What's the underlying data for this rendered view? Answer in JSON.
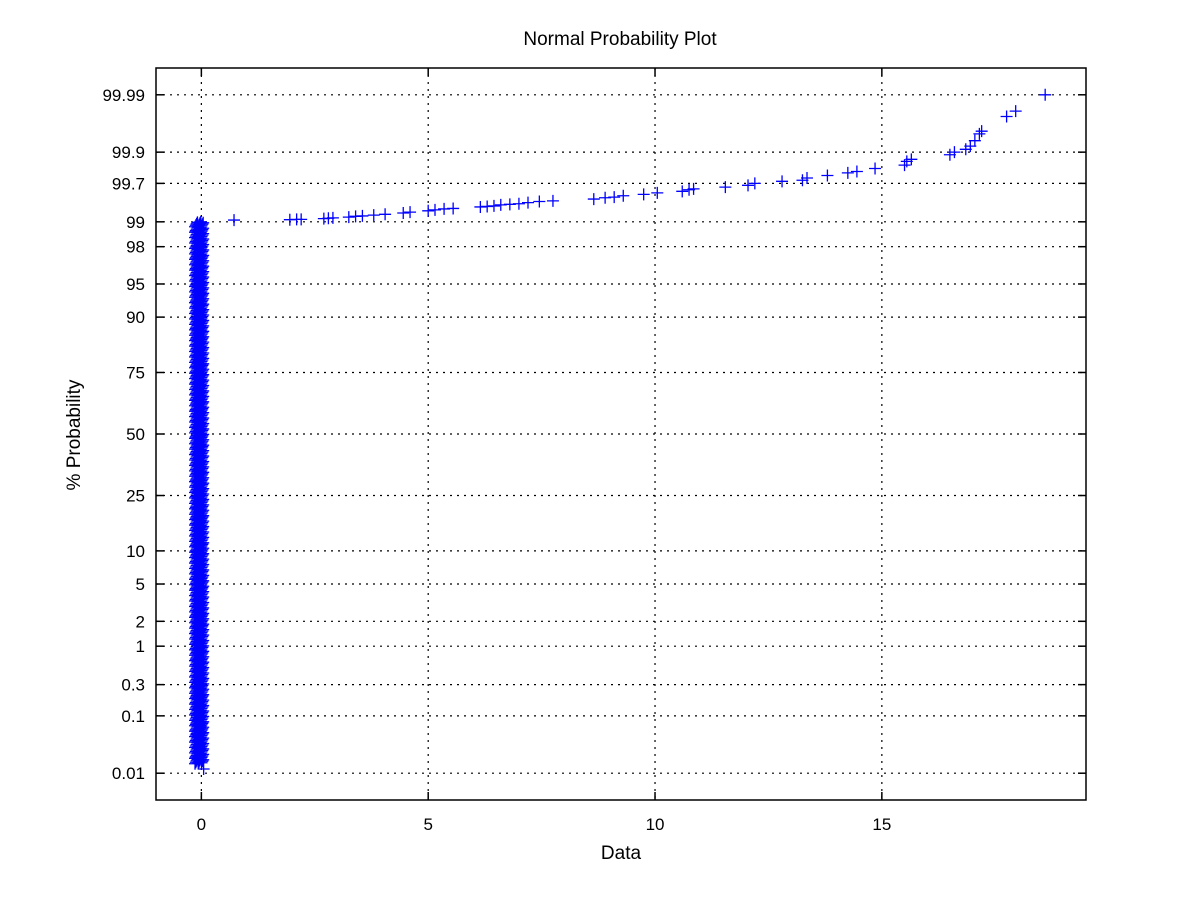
{
  "chart_data": {
    "type": "scatter",
    "title": "Normal Probability Plot",
    "xlabel": "Data",
    "ylabel": "% Probability",
    "xlim": [
      -1,
      19.5
    ],
    "ylim_percent": [
      0.003,
      99.997
    ],
    "y_scale": "normal-probability",
    "grid": true,
    "marker": "+",
    "color": "#0000ff",
    "x_ticks": [
      0,
      5,
      10,
      15
    ],
    "x_tick_labels": [
      "0",
      "5",
      "10",
      "15"
    ],
    "y_ticks": [
      0.01,
      0.1,
      0.3,
      1,
      2,
      5,
      10,
      25,
      50,
      75,
      90,
      95,
      98,
      99,
      99.7,
      99.9,
      99.99
    ],
    "y_tick_labels": [
      "0.01",
      "0.1",
      "0.3",
      "1",
      "2",
      "5",
      "10",
      "25",
      "50",
      "75",
      "90",
      "95",
      "98",
      "99",
      "99.7",
      "99.9",
      "99.99"
    ],
    "cluster": {
      "x_center": -0.05,
      "x_spread": 0.09,
      "percent_from": 0.015,
      "percent_to": 99.0,
      "count": 1100
    },
    "points": [
      {
        "x": 0.05,
        "p": 0.012
      },
      {
        "x": -0.08,
        "p": 0.02
      },
      {
        "x": -0.05,
        "p": 0.03
      },
      {
        "x": -0.1,
        "p": 0.05
      },
      {
        "x": -0.02,
        "p": 0.07
      },
      {
        "x": -0.07,
        "p": 0.1
      },
      {
        "x": -0.04,
        "p": 0.15
      },
      {
        "x": -0.09,
        "p": 0.22
      },
      {
        "x": 0.72,
        "p": 99.05
      },
      {
        "x": 1.95,
        "p": 99.06
      },
      {
        "x": 2.1,
        "p": 99.07
      },
      {
        "x": 2.2,
        "p": 99.07
      },
      {
        "x": 2.7,
        "p": 99.09
      },
      {
        "x": 2.8,
        "p": 99.1
      },
      {
        "x": 2.9,
        "p": 99.11
      },
      {
        "x": 3.25,
        "p": 99.13
      },
      {
        "x": 3.4,
        "p": 99.15
      },
      {
        "x": 3.55,
        "p": 99.16
      },
      {
        "x": 3.8,
        "p": 99.18
      },
      {
        "x": 4.05,
        "p": 99.2
      },
      {
        "x": 4.45,
        "p": 99.23
      },
      {
        "x": 4.6,
        "p": 99.25
      },
      {
        "x": 5.0,
        "p": 99.28
      },
      {
        "x": 5.15,
        "p": 99.3
      },
      {
        "x": 5.35,
        "p": 99.32
      },
      {
        "x": 5.55,
        "p": 99.33
      },
      {
        "x": 6.15,
        "p": 99.36
      },
      {
        "x": 6.3,
        "p": 99.37
      },
      {
        "x": 6.45,
        "p": 99.38
      },
      {
        "x": 6.6,
        "p": 99.4
      },
      {
        "x": 6.8,
        "p": 99.41
      },
      {
        "x": 7.0,
        "p": 99.42
      },
      {
        "x": 7.2,
        "p": 99.44
      },
      {
        "x": 7.45,
        "p": 99.46
      },
      {
        "x": 7.75,
        "p": 99.47
      },
      {
        "x": 8.65,
        "p": 99.5
      },
      {
        "x": 8.9,
        "p": 99.52
      },
      {
        "x": 9.1,
        "p": 99.53
      },
      {
        "x": 9.3,
        "p": 99.55
      },
      {
        "x": 9.75,
        "p": 99.57
      },
      {
        "x": 10.05,
        "p": 99.59
      },
      {
        "x": 10.6,
        "p": 99.61
      },
      {
        "x": 10.75,
        "p": 99.63
      },
      {
        "x": 10.85,
        "p": 99.64
      },
      {
        "x": 11.55,
        "p": 99.66
      },
      {
        "x": 12.05,
        "p": 99.68
      },
      {
        "x": 12.2,
        "p": 99.7
      },
      {
        "x": 12.8,
        "p": 99.72
      },
      {
        "x": 13.25,
        "p": 99.73
      },
      {
        "x": 13.35,
        "p": 99.75
      },
      {
        "x": 13.8,
        "p": 99.77
      },
      {
        "x": 14.25,
        "p": 99.79
      },
      {
        "x": 14.45,
        "p": 99.8
      },
      {
        "x": 14.85,
        "p": 99.82
      },
      {
        "x": 15.5,
        "p": 99.84
      },
      {
        "x": 15.55,
        "p": 99.86
      },
      {
        "x": 15.65,
        "p": 99.87
      },
      {
        "x": 16.5,
        "p": 99.89
      },
      {
        "x": 16.6,
        "p": 99.9
      },
      {
        "x": 16.85,
        "p": 99.91
      },
      {
        "x": 16.95,
        "p": 99.92
      },
      {
        "x": 17.05,
        "p": 99.935
      },
      {
        "x": 17.15,
        "p": 99.95
      },
      {
        "x": 17.2,
        "p": 99.955
      },
      {
        "x": 17.75,
        "p": 99.975
      },
      {
        "x": 17.95,
        "p": 99.98
      },
      {
        "x": 18.6,
        "p": 99.99
      }
    ]
  }
}
